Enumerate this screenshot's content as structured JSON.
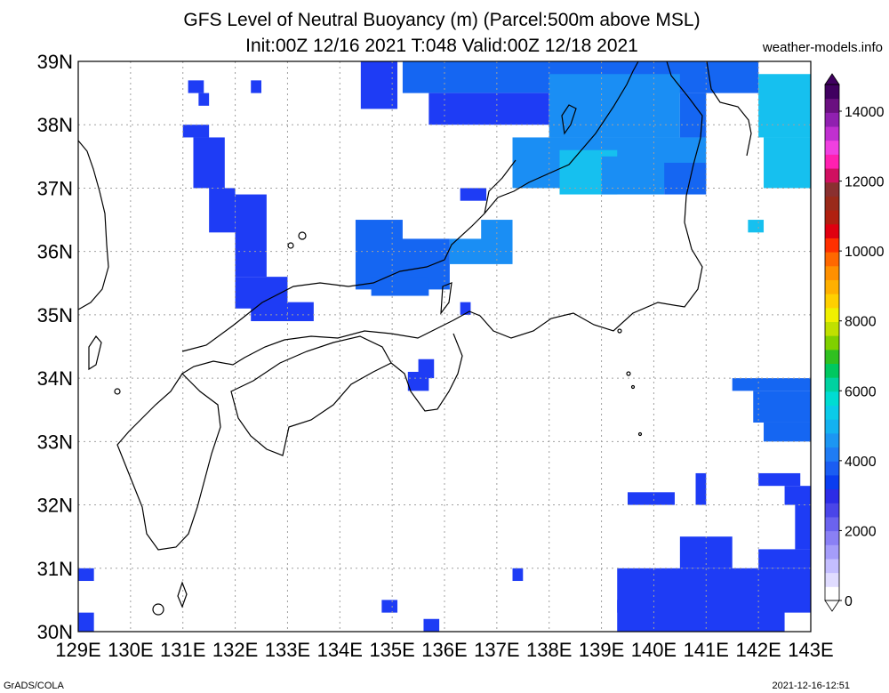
{
  "title": {
    "line1": "GFS Level of Neutral Buoyancy (m) (Parcel:500m above MSL)",
    "line2": "Init:00Z 12/16 2021 T:048 Valid:00Z 12/18 2021"
  },
  "site_label": "weather-models.info",
  "footer": {
    "left": "GrADS/COLA",
    "right": "2021-12-16-12:51"
  },
  "map": {
    "lon_range": [
      129,
      143
    ],
    "lat_range": [
      30,
      39
    ],
    "lat_labels": [
      "30N",
      "31N",
      "32N",
      "33N",
      "34N",
      "35N",
      "36N",
      "37N",
      "38N",
      "39N"
    ],
    "lon_labels": [
      "129E",
      "130E",
      "131E",
      "132E",
      "133E",
      "134E",
      "135E",
      "136E",
      "137E",
      "138E",
      "139E",
      "140E",
      "141E",
      "142E",
      "143E"
    ],
    "grid": "dotted"
  },
  "colorbar": {
    "labels": [
      "0",
      "2000",
      "4000",
      "6000",
      "8000",
      "10000",
      "12000",
      "14000"
    ],
    "colors": [
      "#ffffff",
      "#e0dcff",
      "#c4beff",
      "#a59dfa",
      "#8a80f5",
      "#6b63ee",
      "#4a45e8",
      "#2c2ce6",
      "#0a3df0",
      "#1a5df2",
      "#1f7cf4",
      "#1c96f2",
      "#14b2f0",
      "#0bcbe9",
      "#00dcd2",
      "#00d2a0",
      "#00c860",
      "#30c020",
      "#80d000",
      "#c0e000",
      "#f0f000",
      "#ffd000",
      "#ffb000",
      "#ff9000",
      "#ff6800",
      "#ff3000",
      "#e00010",
      "#b02010",
      "#9a2a1a",
      "#8a3030",
      "#d01060",
      "#ff20b0",
      "#f040e0",
      "#c030d0",
      "#9020b0",
      "#6a1080",
      "#400060"
    ]
  },
  "legend_colors": {
    "c1": "#1e3cf5",
    "c2": "#1566f2",
    "c3": "#1a8ef4",
    "c4": "#16c0ef"
  }
}
